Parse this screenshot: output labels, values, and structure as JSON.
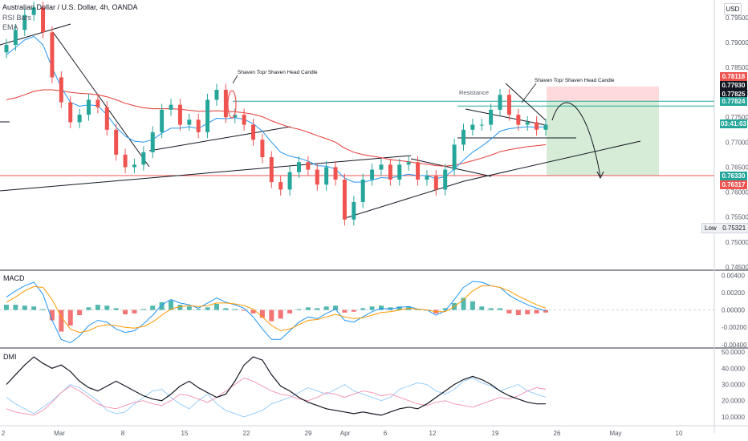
{
  "header": {
    "symbol": "Australian Dollar / U.S. Dollar, 4h, OANDA",
    "indicator_1": "RSI Bars",
    "indicator_2": "EMA"
  },
  "currency_button": "USD",
  "colors": {
    "up": "#26a69a",
    "down": "#ef5350",
    "ema_fast": "#2196f3",
    "ema_slow": "#e53935",
    "target_zone": "#c8e6c9",
    "stop_zone": "#ffcdd2"
  },
  "annotations": {
    "left_candle_note": "Shaven Top/ Shaven Head Candle",
    "right_candle_note": "Shaven Top/ Shaven Head Candle",
    "resistance_label": "Resistance"
  },
  "price_tags": [
    {
      "label": "0.78118",
      "color": "#ef5350"
    },
    {
      "label": "0.77930",
      "color": "#131722"
    },
    {
      "label": "0.77825",
      "color": "#131722"
    },
    {
      "label": "0.77824",
      "color": "#26a69a"
    },
    {
      "label": "03:41:03",
      "color": "#26a69a"
    },
    {
      "label": "0.76330",
      "color": "#26a69a"
    },
    {
      "label": "0.76317",
      "color": "#ef5350"
    }
  ],
  "low_tag": {
    "label": "Low",
    "value": "0.75321"
  },
  "macd_label": "MACD",
  "dmi_label": "DMI",
  "chart_data": [
    {
      "type": "candlestick",
      "title": "Australian Dollar / U.S. Dollar, 4h, OANDA",
      "ylim": [
        0.7445,
        0.7985
      ],
      "y_ticks": [
        "0.79500",
        "0.79000",
        "0.78500",
        "0.78000",
        "0.77500",
        "0.77000",
        "0.76500",
        "0.76000",
        "0.75500",
        "0.75000",
        "0.74500"
      ],
      "y_tick_values": [
        0.795,
        0.79,
        0.785,
        0.78,
        0.775,
        0.77,
        0.765,
        0.76,
        0.755,
        0.75,
        0.745
      ],
      "x_ticks": [
        "2",
        "Mar",
        "8",
        "15",
        "22",
        "29",
        "Apr",
        "6",
        "12",
        "19",
        "26",
        "May",
        "10"
      ],
      "close_series": [
        0.7895,
        0.7925,
        0.7955,
        0.797,
        0.792,
        0.783,
        0.778,
        0.774,
        0.7755,
        0.7785,
        0.777,
        0.7725,
        0.7675,
        0.765,
        0.7655,
        0.768,
        0.772,
        0.7765,
        0.7775,
        0.7735,
        0.7745,
        0.772,
        0.7785,
        0.7805,
        0.775,
        0.7755,
        0.7735,
        0.7705,
        0.767,
        0.762,
        0.7605,
        0.764,
        0.766,
        0.7645,
        0.7615,
        0.765,
        0.7625,
        0.7545,
        0.758,
        0.7625,
        0.7645,
        0.7655,
        0.7625,
        0.7655,
        0.766,
        0.7625,
        0.7632,
        0.7605,
        0.7645,
        0.7695,
        0.7725,
        0.7735,
        0.7735,
        0.7765,
        0.7795,
        0.7755,
        0.7735,
        0.774,
        0.7725,
        0.7735
      ],
      "ema_fast": [
        0.7875,
        0.789,
        0.7905,
        0.7912,
        0.7895,
        0.785,
        0.781,
        0.778,
        0.7772,
        0.7775,
        0.7773,
        0.7755,
        0.773,
        0.7712,
        0.7702,
        0.77,
        0.7705,
        0.7718,
        0.7728,
        0.7728,
        0.7731,
        0.7727,
        0.7738,
        0.7748,
        0.7747,
        0.7749,
        0.7746,
        0.7737,
        0.7722,
        0.77,
        0.768,
        0.7672,
        0.7668,
        0.7662,
        0.7653,
        0.7652,
        0.7646,
        0.7628,
        0.762,
        0.762,
        0.7624,
        0.7629,
        0.7628,
        0.7632,
        0.7636,
        0.7633,
        0.7633,
        0.7627,
        0.7631,
        0.7646,
        0.7664,
        0.768,
        0.7692,
        0.7706,
        0.7722,
        0.7727,
        0.7729,
        0.7731,
        0.773,
        0.7731
      ],
      "ema_slow": [
        0.7785,
        0.7789,
        0.7795,
        0.7802,
        0.7805,
        0.7805,
        0.7803,
        0.78,
        0.7798,
        0.7797,
        0.7795,
        0.7791,
        0.7785,
        0.7778,
        0.7773,
        0.7769,
        0.7767,
        0.7767,
        0.7767,
        0.7766,
        0.7764,
        0.7762,
        0.7762,
        0.7763,
        0.7762,
        0.7761,
        0.7759,
        0.7756,
        0.7751,
        0.7743,
        0.7736,
        0.773,
        0.7726,
        0.772,
        0.7713,
        0.7707,
        0.77,
        0.7688,
        0.768,
        0.7675,
        0.7672,
        0.7669,
        0.7665,
        0.7663,
        0.7661,
        0.7658,
        0.7656,
        0.7653,
        0.7652,
        0.7654,
        0.7658,
        0.7663,
        0.7668,
        0.7674,
        0.7681,
        0.7685,
        0.7688,
        0.7691,
        0.7693,
        0.7695
      ],
      "levels": {
        "resistance": 0.7782,
        "stop": 0.7812,
        "support": 0.7633
      }
    },
    {
      "type": "bar",
      "title": "MACD",
      "ylim": [
        -0.0043,
        0.0045
      ],
      "y_ticks": [
        "0.00400",
        "0.00200",
        "0.00000",
        "-0.00200",
        "-0.00400"
      ],
      "y_tick_values": [
        0.004,
        0.002,
        0.0,
        -0.002,
        -0.004
      ],
      "histogram": [
        0.0006,
        0.0006,
        0.0005,
        0.0004,
        0.0001,
        -0.0012,
        -0.0025,
        -0.0018,
        -0.0006,
        0.0003,
        0.0006,
        0.0005,
        0.0002,
        -0.0005,
        -0.0004,
        0.0001,
        0.0005,
        0.0009,
        0.0011,
        0.0006,
        0.0004,
        0.0001,
        0.0003,
        0.0007,
        0.0002,
        0.0001,
        -0.0001,
        -0.0004,
        -0.0009,
        -0.0013,
        -0.001,
        -0.0004,
        0.0001,
        0.0003,
        0.0002,
        0.0004,
        0.0005,
        -0.0003,
        -0.0002,
        0.0002,
        0.0004,
        0.0005,
        0.0003,
        0.0004,
        0.0004,
        0.0001,
        0.0,
        -0.0004,
        0.0002,
        0.0008,
        0.0014,
        0.001,
        0.0004,
        0.0002,
        0.0002,
        -0.0004,
        -0.0006,
        -0.0005,
        -0.0004,
        -0.0003
      ],
      "macd_line": [
        0.0015,
        0.0022,
        0.0028,
        0.0032,
        0.0018,
        -0.0012,
        -0.0034,
        -0.0038,
        -0.003,
        -0.0018,
        -0.0012,
        -0.0014,
        -0.0022,
        -0.0026,
        -0.0024,
        -0.0016,
        -0.0006,
        0.0006,
        0.0012,
        0.0008,
        0.0006,
        0.0002,
        0.0008,
        0.0014,
        0.0009,
        0.0006,
        0.0002,
        -0.0008,
        -0.0022,
        -0.0034,
        -0.0034,
        -0.0024,
        -0.0014,
        -0.0008,
        -0.001,
        -0.0004,
        0.0001,
        -0.0012,
        -0.0014,
        -0.0008,
        -0.0002,
        0.0002,
        0.0001,
        0.0003,
        0.0004,
        0.0001,
        0.0,
        -0.0006,
        -0.0001,
        0.0012,
        0.0026,
        0.0033,
        0.0032,
        0.0028,
        0.0026,
        0.0017,
        0.0011,
        0.0006,
        0.0002,
        -0.0001
      ],
      "signal_line": [
        0.0009,
        0.0015,
        0.0022,
        0.0027,
        0.0026,
        0.0012,
        -0.0008,
        -0.0022,
        -0.0026,
        -0.0024,
        -0.0019,
        -0.0017,
        -0.0018,
        -0.002,
        -0.0021,
        -0.0019,
        -0.0014,
        -0.0006,
        0.0001,
        0.0004,
        0.0005,
        0.0004,
        0.0005,
        0.0008,
        0.0008,
        0.0007,
        0.0005,
        0.0001,
        -0.0008,
        -0.0018,
        -0.0024,
        -0.0022,
        -0.0017,
        -0.0012,
        -0.0011,
        -0.0008,
        -0.0005,
        -0.0008,
        -0.001,
        -0.0009,
        -0.0006,
        -0.0003,
        -0.0002,
        0.0,
        0.0002,
        0.0001,
        0.0,
        -0.0002,
        -0.0002,
        0.0004,
        0.0012,
        0.0022,
        0.0028,
        0.0028,
        0.0026,
        0.0022,
        0.0016,
        0.0011,
        0.0006,
        0.0002
      ]
    },
    {
      "type": "line",
      "title": "DMI",
      "ylim": [
        5,
        52
      ],
      "y_ticks": [
        "50.0000",
        "40.0000",
        "30.0000",
        "20.0000",
        "10.0000"
      ],
      "y_tick_values": [
        50,
        40,
        30,
        20,
        10
      ],
      "series": [
        {
          "values": [
            30,
            36,
            42,
            47,
            43,
            40,
            42,
            38,
            32,
            28,
            26,
            29,
            32,
            29,
            26,
            23,
            21,
            20,
            24,
            29,
            32,
            28,
            25,
            22,
            24,
            32,
            42,
            47,
            45,
            36,
            29,
            26,
            22,
            19,
            17,
            15,
            14,
            13,
            12,
            13,
            12,
            11,
            13,
            15,
            16,
            15,
            18,
            22,
            26,
            30,
            33,
            35,
            33,
            30,
            26,
            23,
            21,
            19,
            18,
            18
          ]
        },
        {
          "values": [
            22,
            18,
            15,
            12,
            16,
            20,
            25,
            30,
            28,
            24,
            20,
            14,
            12,
            13,
            18,
            22,
            26,
            27,
            22,
            18,
            15,
            20,
            24,
            18,
            14,
            12,
            10,
            12,
            14,
            18,
            20,
            22,
            25,
            28,
            26,
            24,
            27,
            30,
            26,
            24,
            22,
            20,
            22,
            27,
            29,
            31,
            30,
            26,
            24,
            27,
            32,
            34,
            31,
            29,
            26,
            28,
            30,
            26,
            24,
            22
          ]
        },
        {
          "values": [
            15,
            13,
            12,
            11,
            14,
            19,
            25,
            29,
            26,
            22,
            18,
            16,
            15,
            17,
            19,
            20,
            18,
            17,
            20,
            24,
            23,
            21,
            19,
            22,
            26,
            30,
            34,
            32,
            29,
            26,
            24,
            23,
            21,
            20,
            22,
            25,
            24,
            22,
            24,
            26,
            25,
            23,
            24,
            22,
            20,
            18,
            17,
            19,
            20,
            18,
            17,
            16,
            18,
            20,
            22,
            21,
            23,
            26,
            28,
            27
          ]
        }
      ]
    }
  ]
}
